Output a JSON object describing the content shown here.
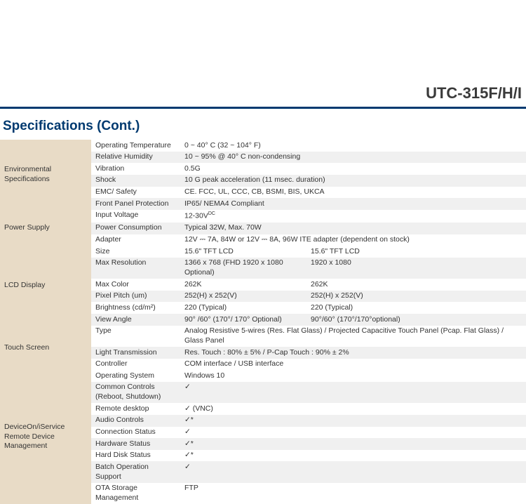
{
  "colors": {
    "model_title": "#3a3a3a",
    "blue_rule": "#003a70",
    "section_title": "#003a70",
    "row_tan": "#e8dbc6",
    "row_gray": "#f0f0f0",
    "row_white": "#ffffff",
    "text": "#333333",
    "border_light": "#ffffff"
  },
  "typography": {
    "model_title_size": 22,
    "section_title_size": 19,
    "body_size": 10.5
  },
  "model_title": "UTC-315F/H/I",
  "section_title": "Specifications (Cont.)",
  "groups": [
    {
      "category": "Environmental Specifications",
      "rows": [
        {
          "param": "Operating Temperature",
          "value": "0 ~ 40° C (32 ~ 104° F)"
        },
        {
          "param": "Relative Humidity",
          "value": "10 ~ 95% @ 40° C non-condensing"
        },
        {
          "param": "Vibration",
          "value": "0.5G"
        },
        {
          "param": "Shock",
          "value": "10 G peak acceleration (11 msec. duration)"
        },
        {
          "param": "EMC/ Safety",
          "value": "CE. FCC, UL, CCC, CB, BSMI, BIS, UKCA"
        },
        {
          "param": "Front Panel Protection",
          "value": "IP65/ NEMA4 Compliant"
        }
      ]
    },
    {
      "category": "Power Supply",
      "rows": [
        {
          "param": "Input Voltage",
          "value": "12-30V",
          "value_suffix_sub": "DC"
        },
        {
          "param": "Power Consumption",
          "value": "Typical 32W, Max. 70W"
        },
        {
          "param": "Adapter",
          "value": "12V ⎓ 7A, 84W or 12V ⎓ 8A, 96W ITE adapter (dependent on stock)"
        }
      ]
    },
    {
      "category": "LCD Display",
      "two_col": true,
      "rows": [
        {
          "param": "Size",
          "value": "15.6\" TFT LCD",
          "value2": "15.6\" TFT LCD"
        },
        {
          "param": "Max Resolution",
          "value": "1366 x 768 (FHD 1920 x 1080 Optional)",
          "value2": "1920 x 1080"
        },
        {
          "param": "Max Color",
          "value": "262K",
          "value2": "262K"
        },
        {
          "param": "Pixel Pitch (um)",
          "value": "252(H) x 252(V)",
          "value2": "252(H) x 252(V)"
        },
        {
          "param": "Brightness (cd/m²)",
          "value": "220 (Typical)",
          "value2": "220 (Typical)"
        },
        {
          "param": "View Angle",
          "value": "90° /60° (170°/ 170° Optional)",
          "value2": "90°/60° (170°/170°optional)"
        }
      ]
    },
    {
      "category": "Touch Screen",
      "rows": [
        {
          "param": "Type",
          "value": "Analog Resistive 5-wires (Res. Flat Glass) / Projected Capacitive Touch Panel (Pcap. Flat Glass) / Glass Panel"
        },
        {
          "param": "Light Transmission",
          "value": "Res. Touch : 80% ± 5% / P-Cap Touch : 90% ± 2%"
        },
        {
          "param": "Controller",
          "value": "COM interface / USB interface"
        }
      ]
    },
    {
      "category": "DeviceOn/iService\nRemote Device Management",
      "rows": [
        {
          "param": "Operating System",
          "value": "Windows 10"
        },
        {
          "param": "Common Controls\n(Reboot, Shutdown)",
          "value": "✓"
        },
        {
          "param": "Remote desktop",
          "value": "✓ (VNC)"
        },
        {
          "param": "Audio Controls",
          "value": "✓*"
        },
        {
          "param": "Connection Status",
          "value": "✓"
        },
        {
          "param": "Hardware Status",
          "value": "✓*"
        },
        {
          "param": "Hard Disk Status",
          "value": "✓*"
        },
        {
          "param": "Batch Operation Support",
          "value": "✓"
        },
        {
          "param": "OTA Storage Management",
          "value": "FTP"
        }
      ]
    }
  ]
}
